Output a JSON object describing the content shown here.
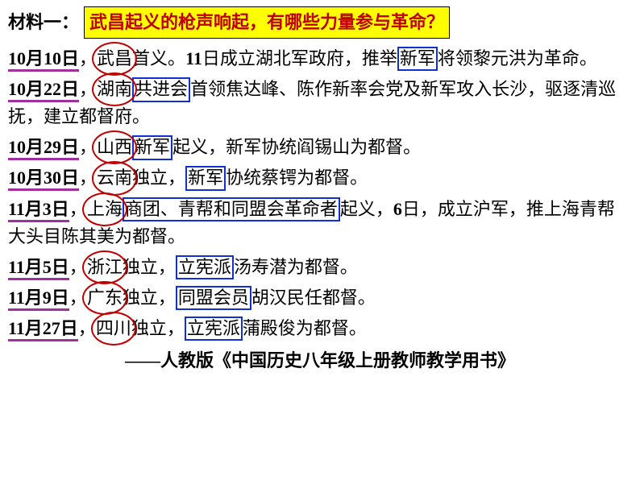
{
  "header": {
    "material_label": "材料一：",
    "question": "武昌起义的枪声响起，有哪些力量参与革命？"
  },
  "events": [
    {
      "date": "10月10日",
      "pre": "，",
      "circled": "武昌",
      "text1": "首义。",
      "bold1": "11",
      "text2": "日成立湖北军政府，推举",
      "box1": "新军",
      "text3": "将领黎元洪为革命。"
    },
    {
      "date": "10月22日",
      "pre": "，",
      "circled": "湖南",
      "box1": "共进会",
      "text1": "首领焦达峰、陈作新率会党及新军攻入长沙，驱逐清巡抚，建立都督府。"
    },
    {
      "date": "10月29日",
      "pre": "，",
      "circled": "山西",
      "box1": "新军",
      "text1": "起义，新军协统阎锡山为都督。"
    },
    {
      "date": "10月30日",
      "pre": "，",
      "circled": "云南",
      "text1": "独立，",
      "box1": "新军",
      "text2": "协统蔡锷为都督。"
    },
    {
      "date": "11月3日",
      "pre": "，",
      "circled": "上海",
      "box1": "商团、青帮和同盟会革命者",
      "text1": "起义，",
      "bold1": "6",
      "text2": "日，成立沪军，推上海青帮大头目陈其美为都督。"
    },
    {
      "date": "11月5日",
      "pre": "，",
      "circled": "浙江",
      "text1": "独立，",
      "box1": "立宪派",
      "text2": "汤寿潜为都督。"
    },
    {
      "date": "11月9日",
      "pre": "，",
      "circled": "广东",
      "text1": "独立，",
      "box1": "同盟会员",
      "text2": "胡汉民任都督。"
    },
    {
      "date": "11月27日",
      "pre": "，",
      "circled": "四川",
      "text1": "独立，",
      "box1": "立宪派",
      "text2": "蒲殿俊为都督。"
    }
  ],
  "source": "——人教版《中国历史八年级上册教师教学用书》",
  "colors": {
    "circle": "#c00000",
    "box": "#1030d0",
    "underline": "#a030a0",
    "highlight_bg": "#ffff00",
    "highlight_text": "#c00000"
  }
}
